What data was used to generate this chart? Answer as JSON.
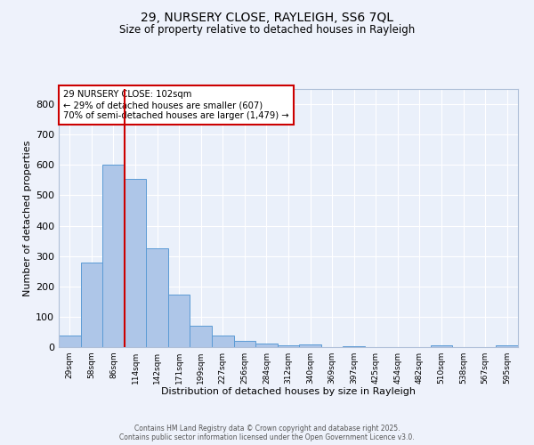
{
  "title_line1": "29, NURSERY CLOSE, RAYLEIGH, SS6 7QL",
  "title_line2": "Size of property relative to detached houses in Rayleigh",
  "xlabel": "Distribution of detached houses by size in Rayleigh",
  "ylabel": "Number of detached properties",
  "bar_labels": [
    "29sqm",
    "58sqm",
    "86sqm",
    "114sqm",
    "142sqm",
    "171sqm",
    "199sqm",
    "227sqm",
    "256sqm",
    "284sqm",
    "312sqm",
    "340sqm",
    "369sqm",
    "397sqm",
    "425sqm",
    "454sqm",
    "482sqm",
    "510sqm",
    "538sqm",
    "567sqm",
    "595sqm"
  ],
  "bar_values": [
    38,
    278,
    600,
    555,
    325,
    172,
    70,
    38,
    20,
    12,
    7,
    8,
    0,
    4,
    0,
    0,
    0,
    5,
    0,
    0,
    5
  ],
  "bar_color": "#aec6e8",
  "bar_edge_color": "#5b9bd5",
  "ylim": [
    0,
    850
  ],
  "yticks": [
    0,
    100,
    200,
    300,
    400,
    500,
    600,
    700,
    800
  ],
  "property_size": 102,
  "red_line_x": 2.5,
  "annotation_text": "29 NURSERY CLOSE: 102sqm\n← 29% of detached houses are smaller (607)\n70% of semi-detached houses are larger (1,479) →",
  "annotation_box_color": "#ffffff",
  "annotation_border_color": "#cc0000",
  "footer1": "Contains HM Land Registry data © Crown copyright and database right 2025.",
  "footer2": "Contains public sector information licensed under the Open Government Licence v3.0.",
  "background_color": "#eef2fb",
  "plot_bg_color": "#eaf0fa",
  "grid_color": "#ffffff"
}
